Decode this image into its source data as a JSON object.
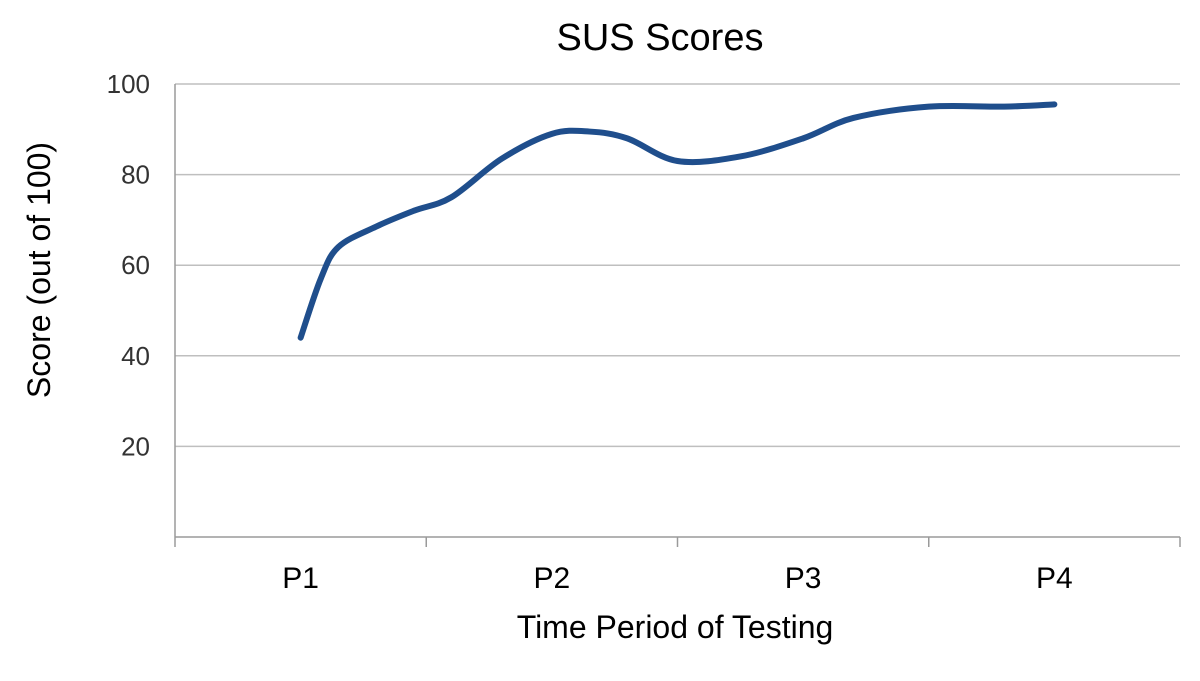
{
  "chart_data": {
    "type": "line",
    "title": "SUS Scores",
    "xlabel": "Time Period of Testing",
    "ylabel": "Score (out of 100)",
    "categories": [
      "P1",
      "P2",
      "P3",
      "P4"
    ],
    "ylim": [
      0,
      100
    ],
    "yticks": [
      20,
      40,
      60,
      80,
      100
    ],
    "grid": true,
    "smooth": true,
    "series": [
      {
        "color": "#1f4e8c",
        "x": [
          1.0,
          1.08,
          1.15,
          1.3,
          1.45,
          1.6,
          1.8,
          2.0,
          2.15,
          2.3,
          2.5,
          2.75,
          3.0,
          3.2,
          3.5,
          3.8,
          4.0
        ],
        "values": [
          44,
          57,
          64,
          68.5,
          72,
          75,
          83.5,
          89,
          89.5,
          88,
          83,
          84,
          88,
          92.5,
          95,
          95,
          95.5
        ]
      }
    ]
  }
}
